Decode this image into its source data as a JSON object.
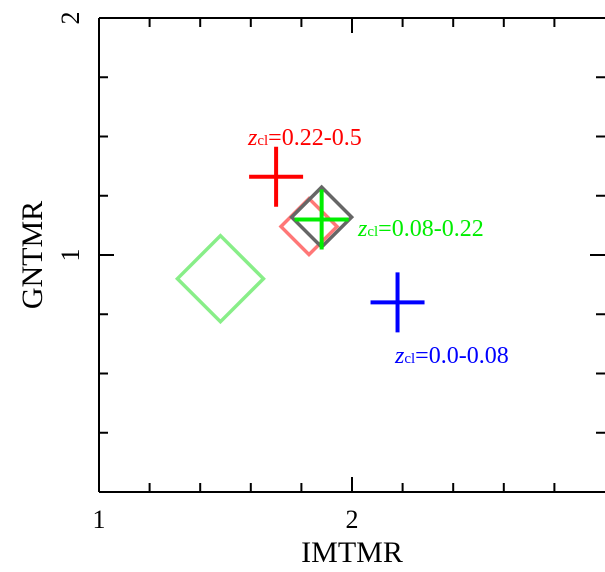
{
  "chart_data": {
    "type": "scatter",
    "xlabel": "IMTMR",
    "ylabel": "GNTMR",
    "xlim": [
      1,
      3
    ],
    "ylim": [
      0,
      2
    ],
    "x_major_ticks": [
      1,
      2
    ],
    "y_major_ticks": [
      1,
      2
    ],
    "x_tick_labels": [
      "1",
      "2"
    ],
    "y_tick_labels": [
      "1",
      "2"
    ],
    "grid": false,
    "series": [
      {
        "name": "zcl=0.22-0.5",
        "label_prefix": "z",
        "label_subscript": "cl",
        "label_range": "=0.22-0.5",
        "color": "#ff0000",
        "marker": "plus",
        "x": 1.7,
        "y": 1.33
      },
      {
        "name": "zcl=0.08-0.22",
        "label_prefix": "z",
        "label_subscript": "cl",
        "label_range": "=0.08-0.22",
        "color": "#00ee00",
        "marker": "plus",
        "x": 1.88,
        "y": 1.15
      },
      {
        "name": "zcl=0.0-0.08",
        "label_prefix": "z",
        "label_subscript": "cl",
        "label_range": "=0.0-0.08",
        "color": "#0000ff",
        "marker": "plus",
        "x": 2.18,
        "y": 0.8
      }
    ],
    "diamonds": [
      {
        "color": "#ff7777",
        "x": 1.83,
        "y": 1.12
      },
      {
        "color": "#666666",
        "x": 1.88,
        "y": 1.16
      },
      {
        "color": "#88ee88",
        "x": 1.48,
        "y": 0.9
      }
    ]
  }
}
